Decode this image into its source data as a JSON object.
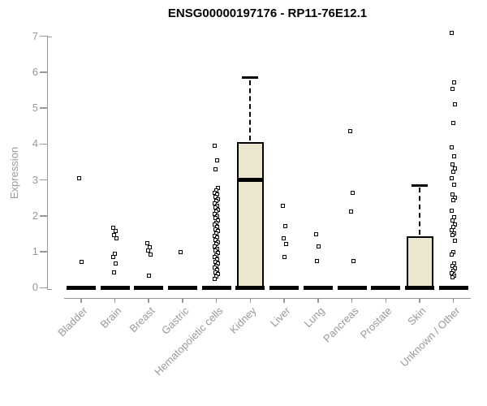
{
  "chart_data": {
    "type": "boxplot_scatter",
    "title": "ENSG00000197176 - RP11-76E12.1",
    "ylabel": "Expression",
    "xlabel": "",
    "ylim": [
      0,
      7.2
    ],
    "yticks": [
      0,
      1,
      2,
      3,
      4,
      5,
      6,
      7
    ],
    "grid": false,
    "legend": "none",
    "categories": [
      "Bladder",
      "Brain",
      "Breast",
      "Gastric",
      "Hematopoietic cells",
      "Kidney",
      "Liver",
      "Lung",
      "Pancreas",
      "Prostate",
      "Skin",
      "Unknown / Other"
    ],
    "colors": {
      "box_fill": "#ebe6cd",
      "box_border": "#000000",
      "point": "#000000",
      "axis": "#999999",
      "tick_label": "#999999",
      "title": "#000000"
    },
    "series": [
      {
        "category": "Bladder",
        "zero_bar": true,
        "points": [
          3.05,
          0.72
        ]
      },
      {
        "category": "Brain",
        "zero_bar": true,
        "points": [
          1.66,
          1.57,
          1.47,
          1.38,
          0.95,
          0.85,
          0.68,
          0.42
        ]
      },
      {
        "category": "Breast",
        "zero_bar": true,
        "points": [
          1.25,
          1.13,
          1.04,
          0.92,
          0.33
        ]
      },
      {
        "category": "Gastric",
        "zero_bar": true,
        "points": [
          0.98
        ]
      },
      {
        "category": "Hematopoietic cells",
        "zero_bar": true,
        "points": [
          3.95,
          3.55,
          3.3,
          2.77,
          2.71,
          2.65,
          2.59,
          2.53,
          2.47,
          2.41,
          2.35,
          2.29,
          2.23,
          2.17,
          2.11,
          2.05,
          1.99,
          1.93,
          1.87,
          1.81,
          1.75,
          1.69,
          1.63,
          1.57,
          1.51,
          1.45,
          1.39,
          1.33,
          1.27,
          1.21,
          1.15,
          1.09,
          1.03,
          0.97,
          0.91,
          0.85,
          0.79,
          0.73,
          0.67,
          0.61,
          0.55,
          0.49,
          0.43,
          0.37,
          0.31,
          0.25
        ]
      },
      {
        "category": "Kidney",
        "zero_bar": true,
        "box": {
          "q1": 0,
          "median": 3.0,
          "q3": 4.05,
          "whisker_high": 5.85
        },
        "points": []
      },
      {
        "category": "Liver",
        "zero_bar": true,
        "points": [
          2.29,
          1.72,
          1.38,
          1.22,
          0.85
        ]
      },
      {
        "category": "Lung",
        "zero_bar": true,
        "points": [
          1.48,
          1.14,
          0.75
        ]
      },
      {
        "category": "Pancreas",
        "zero_bar": true,
        "points": [
          4.35,
          2.65,
          2.13,
          0.74
        ]
      },
      {
        "category": "Prostate",
        "zero_bar": true,
        "points": []
      },
      {
        "category": "Skin",
        "zero_bar": true,
        "box": {
          "q1": 0,
          "median": 0,
          "q3": 1.42,
          "whisker_high": 2.85
        },
        "points": []
      },
      {
        "category": "Unknown / Other",
        "zero_bar": true,
        "points": [
          7.1,
          5.72,
          5.53,
          5.11,
          4.58,
          3.9,
          3.66,
          3.44,
          3.31,
          3.22,
          3.05,
          2.86,
          2.6,
          2.51,
          2.43,
          2.14,
          1.96,
          1.87,
          1.77,
          1.69,
          1.6,
          1.52,
          1.46,
          1.31,
          1.0,
          0.93,
          0.67,
          0.6,
          0.54,
          0.47,
          0.41,
          0.34,
          0.29
        ]
      }
    ]
  }
}
